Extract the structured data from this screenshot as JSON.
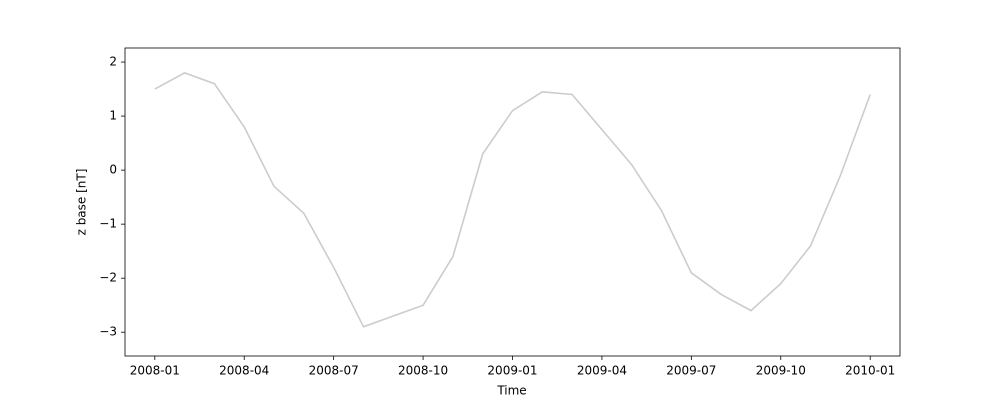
{
  "chart_data": {
    "type": "line",
    "x_label": "Time",
    "y_label": "z base [nT]",
    "x": [
      "2008-01",
      "2008-02",
      "2008-03",
      "2008-04",
      "2008-05",
      "2008-06",
      "2008-07",
      "2008-08",
      "2008-09",
      "2008-10",
      "2008-11",
      "2008-12",
      "2009-01",
      "2009-02",
      "2009-03",
      "2009-04",
      "2009-05",
      "2009-06",
      "2009-07",
      "2009-08",
      "2009-09",
      "2009-10",
      "2009-11",
      "2009-12",
      "2010-01"
    ],
    "values": [
      1.5,
      1.8,
      1.6,
      0.8,
      -0.3,
      -0.8,
      -1.8,
      -2.9,
      -2.7,
      -2.5,
      -1.6,
      0.3,
      1.1,
      1.45,
      1.4,
      0.75,
      0.1,
      -0.75,
      -1.9,
      -2.3,
      -2.6,
      -2.1,
      -1.4,
      -0.1,
      1.4
    ],
    "color": "#cccccc",
    "xlim": [
      "2007-12",
      "2010-02"
    ],
    "xticks": [
      "2008-01",
      "2008-04",
      "2008-07",
      "2008-10",
      "2009-01",
      "2009-04",
      "2009-07",
      "2009-10",
      "2010-01"
    ],
    "ylim": [
      -3.44,
      2.26
    ],
    "yticks": [
      {
        "value": -3,
        "label": "−3"
      },
      {
        "value": -2,
        "label": "−2"
      },
      {
        "value": -1,
        "label": "−1"
      },
      0,
      1,
      2
    ]
  }
}
